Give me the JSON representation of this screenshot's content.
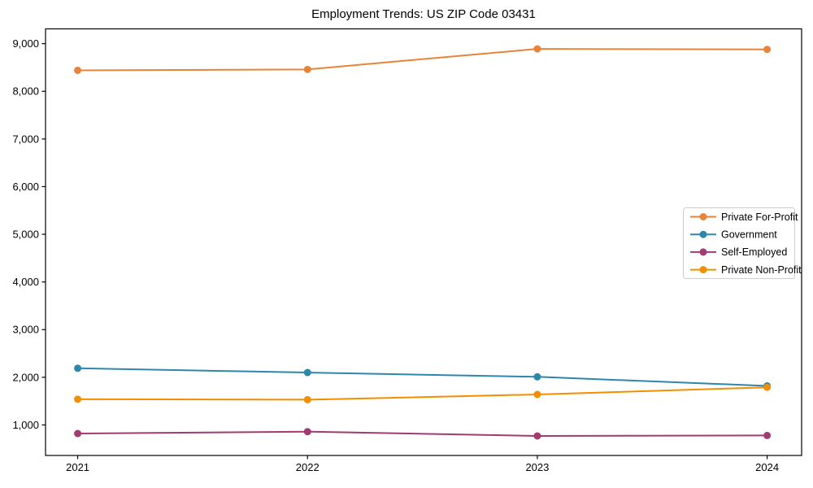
{
  "chart_data": {
    "type": "line",
    "title": "Employment Trends: US ZIP Code 03431",
    "x": [
      2021,
      2022,
      2023,
      2024
    ],
    "x_tick_labels": [
      "2021",
      "2022",
      "2023",
      "2024"
    ],
    "series": [
      {
        "name": "Private For-Profit",
        "color": "#E8833A",
        "values": [
          8440,
          8460,
          8890,
          8880
        ]
      },
      {
        "name": "Government",
        "color": "#2E86AB",
        "values": [
          2190,
          2100,
          2010,
          1820
        ]
      },
      {
        "name": "Self-Employed",
        "color": "#A23B72",
        "values": [
          820,
          860,
          770,
          780
        ]
      },
      {
        "name": "Private Non-Profit",
        "color": "#F18F01",
        "values": [
          1540,
          1530,
          1640,
          1790
        ]
      }
    ],
    "xlabel": "",
    "ylabel": "",
    "xlim": [
      2020.86,
      2024.15
    ],
    "ylim": [
      360,
      9310
    ],
    "yticks": [
      1000,
      2000,
      3000,
      4000,
      5000,
      6000,
      7000,
      8000,
      9000
    ],
    "ytick_labels": [
      "1,000",
      "2,000",
      "3,000",
      "4,000",
      "5,000",
      "6,000",
      "7,000",
      "8,000",
      "9,000"
    ],
    "grid": false,
    "marker": "circle",
    "legend": {
      "position": "center-right",
      "labels": [
        "Private For-Profit",
        "Government",
        "Self-Employed",
        "Private Non-Profit"
      ],
      "border_color": "#cccccc",
      "background": "#ffffff"
    }
  },
  "style": {
    "background": "#ffffff",
    "spine_color": "#000000",
    "tick_color": "#000000",
    "text_color": "#000000"
  }
}
